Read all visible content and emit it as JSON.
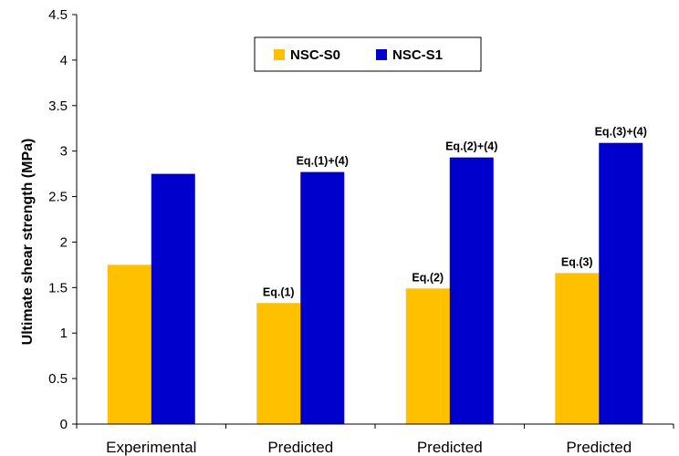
{
  "chart_data": {
    "type": "bar",
    "title": "",
    "xlabel": "",
    "ylabel": "Ultimate shear strength (MPa)",
    "ylim": [
      0,
      4.5
    ],
    "yticks": [
      "0",
      "0.5",
      "1",
      "1.5",
      "2",
      "2.5",
      "3",
      "3.5",
      "4",
      "4.5"
    ],
    "categories": [
      "Experimental",
      "Predicted",
      "Predicted",
      "Predicted"
    ],
    "series": [
      {
        "name": "NSC-S0",
        "color": "#FFC000",
        "values": [
          1.75,
          1.33,
          1.49,
          1.66
        ],
        "annotations": [
          "",
          "Eq.(1)",
          "Eq.(2)",
          "Eq.(3)"
        ]
      },
      {
        "name": "NSC-S1",
        "color": "#0000CC",
        "values": [
          2.75,
          2.77,
          2.93,
          3.09
        ],
        "annotations": [
          "",
          "Eq.(1)+(4)",
          "Eq.(2)+(4)",
          "Eq.(3)+(4)"
        ]
      }
    ],
    "grid": false,
    "legend": "top-center"
  }
}
